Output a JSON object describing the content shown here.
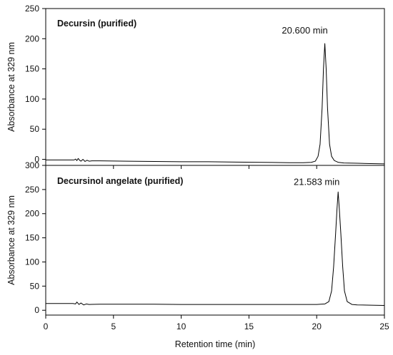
{
  "chart_data": [
    {
      "type": "line",
      "title": "Decursin (purified)",
      "xlabel": "Retention time (min)",
      "ylabel": "Absorbance at 329 nm",
      "xlim": [
        0,
        25
      ],
      "ylim": [
        -10,
        250
      ],
      "xticks": [
        0,
        5,
        10,
        15,
        20,
        25
      ],
      "yticks": [
        0,
        50,
        100,
        150,
        200,
        250
      ],
      "grid": false,
      "annotations": [
        {
          "text": "20.600 min",
          "x": 20.6,
          "y": 192
        }
      ],
      "series": [
        {
          "x": [
            0,
            2.1,
            2.2,
            2.3,
            2.4,
            2.5,
            2.6,
            2.75,
            2.9,
            3.05,
            3.2,
            3.4,
            4,
            6,
            8,
            10,
            12,
            14,
            16,
            18,
            19,
            19.6,
            19.9,
            20.1,
            20.25,
            20.4,
            20.5,
            20.6,
            20.7,
            20.8,
            20.95,
            21.1,
            21.3,
            21.6,
            22,
            23,
            24,
            25
          ],
          "y": [
            -1,
            -1,
            0.5,
            -2,
            1.5,
            -1.5,
            -3,
            0,
            -3.5,
            -1.5,
            -3,
            -2.5,
            -2.5,
            -3,
            -3.5,
            -4,
            -4,
            -4.5,
            -5,
            -5.5,
            -5.5,
            -5,
            -3,
            5,
            25,
            85,
            150,
            192,
            150,
            85,
            25,
            5,
            -2,
            -5,
            -6,
            -6.5,
            -7,
            -7.5
          ]
        }
      ]
    },
    {
      "type": "line",
      "title": "Decursinol angelate (purified)",
      "xlabel": "Retention time (min)",
      "ylabel": "Absorbance at 329 nm",
      "xlim": [
        0,
        25
      ],
      "ylim": [
        -10,
        300
      ],
      "xticks": [
        0,
        5,
        10,
        15,
        20,
        25
      ],
      "yticks": [
        0,
        50,
        100,
        150,
        200,
        250,
        300
      ],
      "grid": false,
      "annotations": [
        {
          "text": "21.583 min",
          "x": 21.583,
          "y": 245
        }
      ],
      "series": [
        {
          "x": [
            0,
            2,
            2.2,
            2.3,
            2.45,
            2.6,
            2.8,
            3,
            3.2,
            4,
            6,
            8,
            10,
            12,
            14,
            16,
            18,
            19,
            20,
            20.6,
            20.9,
            21.1,
            21.25,
            21.4,
            21.5,
            21.583,
            21.67,
            21.78,
            21.92,
            22.05,
            22.25,
            22.6,
            23,
            24,
            25
          ],
          "y": [
            14,
            14,
            13,
            17,
            12,
            15,
            11,
            13,
            12,
            12.5,
            12.5,
            12.5,
            12,
            12,
            12,
            12,
            12,
            12,
            12,
            13,
            18,
            40,
            90,
            160,
            210,
            245,
            210,
            160,
            90,
            40,
            18,
            12,
            11,
            10.5,
            10
          ]
        }
      ]
    }
  ]
}
